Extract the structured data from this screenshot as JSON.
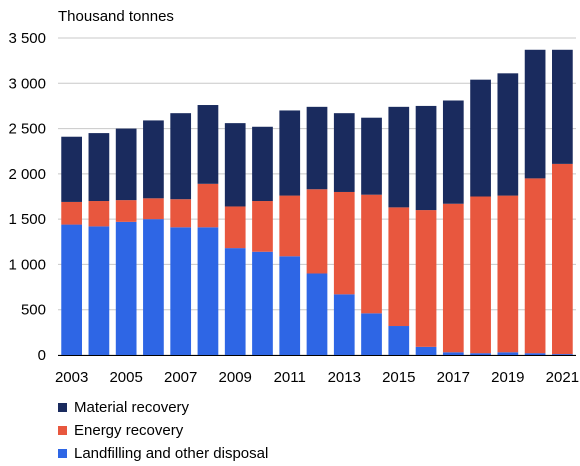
{
  "chart_data": {
    "type": "bar",
    "stacked": true,
    "unit_label": "Thousand tonnes",
    "years": [
      2003,
      2004,
      2005,
      2006,
      2007,
      2008,
      2009,
      2010,
      2011,
      2012,
      2013,
      2014,
      2015,
      2016,
      2017,
      2018,
      2019,
      2020,
      2021
    ],
    "x_tick_labels": [
      "2003",
      "2005",
      "2007",
      "2009",
      "2011",
      "2013",
      "2015",
      "2017",
      "2019",
      "2021"
    ],
    "y_ticks": [
      0,
      500,
      1000,
      1500,
      2000,
      2500,
      3000,
      3500
    ],
    "y_tick_labels": [
      "0",
      "500",
      "1 000",
      "1 500",
      "2 000",
      "2 500",
      "3 000",
      "3 500"
    ],
    "ylim": [
      0,
      3500
    ],
    "grid": "horizontal",
    "legend_position": "bottom",
    "series": [
      {
        "name": "Landfilling and other disposal",
        "color": "#2e66e5",
        "values": [
          1440,
          1420,
          1470,
          1500,
          1410,
          1410,
          1180,
          1140,
          1090,
          900,
          670,
          460,
          320,
          90,
          30,
          20,
          30,
          20,
          10
        ]
      },
      {
        "name": "Energy recovery",
        "color": "#e8573e",
        "values": [
          250,
          280,
          240,
          230,
          310,
          480,
          460,
          560,
          670,
          930,
          1130,
          1310,
          1310,
          1510,
          1640,
          1730,
          1730,
          1930,
          2100
        ]
      },
      {
        "name": "Material recovery",
        "color": "#1a2b5e",
        "values": [
          720,
          750,
          790,
          860,
          950,
          870,
          920,
          820,
          940,
          910,
          870,
          850,
          1110,
          1150,
          1140,
          1290,
          1350,
          1420,
          1260
        ]
      }
    ],
    "legend_order": [
      "Material recovery",
      "Energy recovery",
      "Landfilling and other disposal"
    ]
  }
}
